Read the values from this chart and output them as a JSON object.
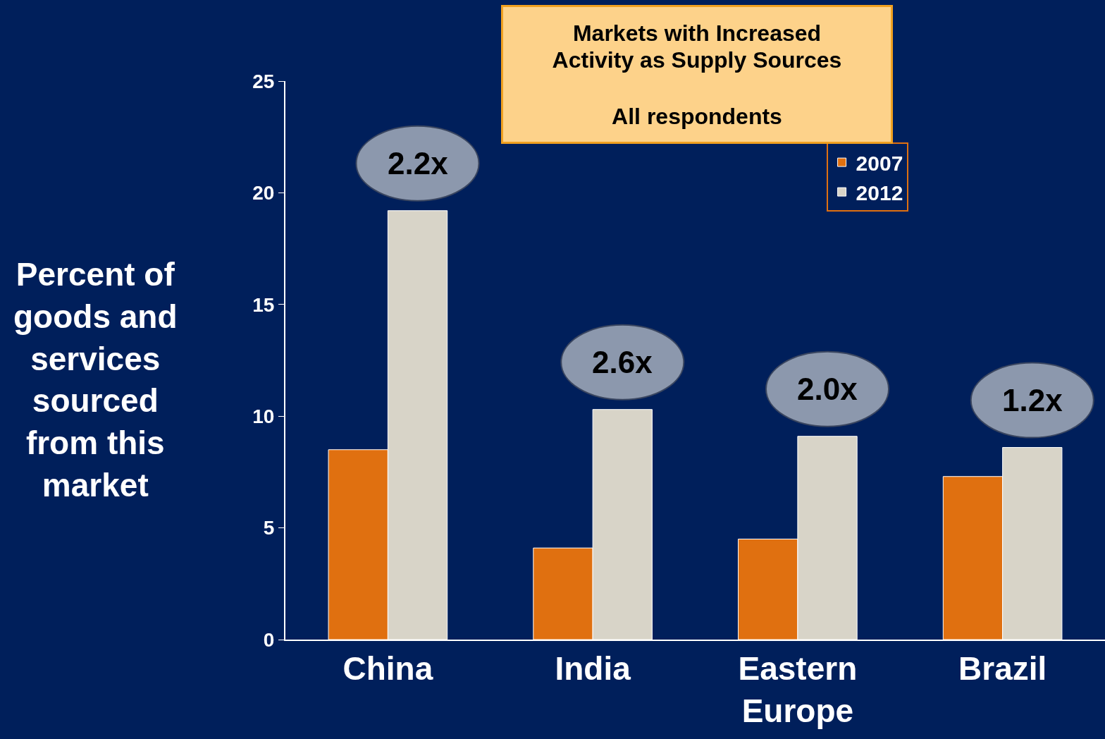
{
  "chart_data": {
    "type": "bar",
    "title": "Markets with Increased Activity as Supply Sources",
    "subtitle": "All respondents",
    "ylabel": "Percent of goods and services sourced from this market",
    "categories": [
      "China",
      "India",
      "Eastern Europe",
      "Brazil"
    ],
    "series": [
      {
        "name": "2007",
        "color": "#e07010",
        "values": [
          8.5,
          4.1,
          4.5,
          7.3
        ]
      },
      {
        "name": "2012",
        "color": "#d8d4c8",
        "values": [
          19.2,
          10.3,
          9.1,
          8.6
        ]
      }
    ],
    "annotations": [
      {
        "text": "2.2x",
        "x": "China",
        "y": 19.2
      },
      {
        "text": "2.6x",
        "x": "India",
        "y": 10.3
      },
      {
        "text": "2.0x",
        "x": "Eastern Europe",
        "y": 9.1
      },
      {
        "text": "1.2x",
        "x": "Brazil",
        "y": 8.6
      }
    ],
    "ylim": [
      0,
      25
    ],
    "yticks": [
      0,
      5,
      10,
      15,
      20,
      25
    ],
    "grid": false,
    "legend": "top right"
  }
}
